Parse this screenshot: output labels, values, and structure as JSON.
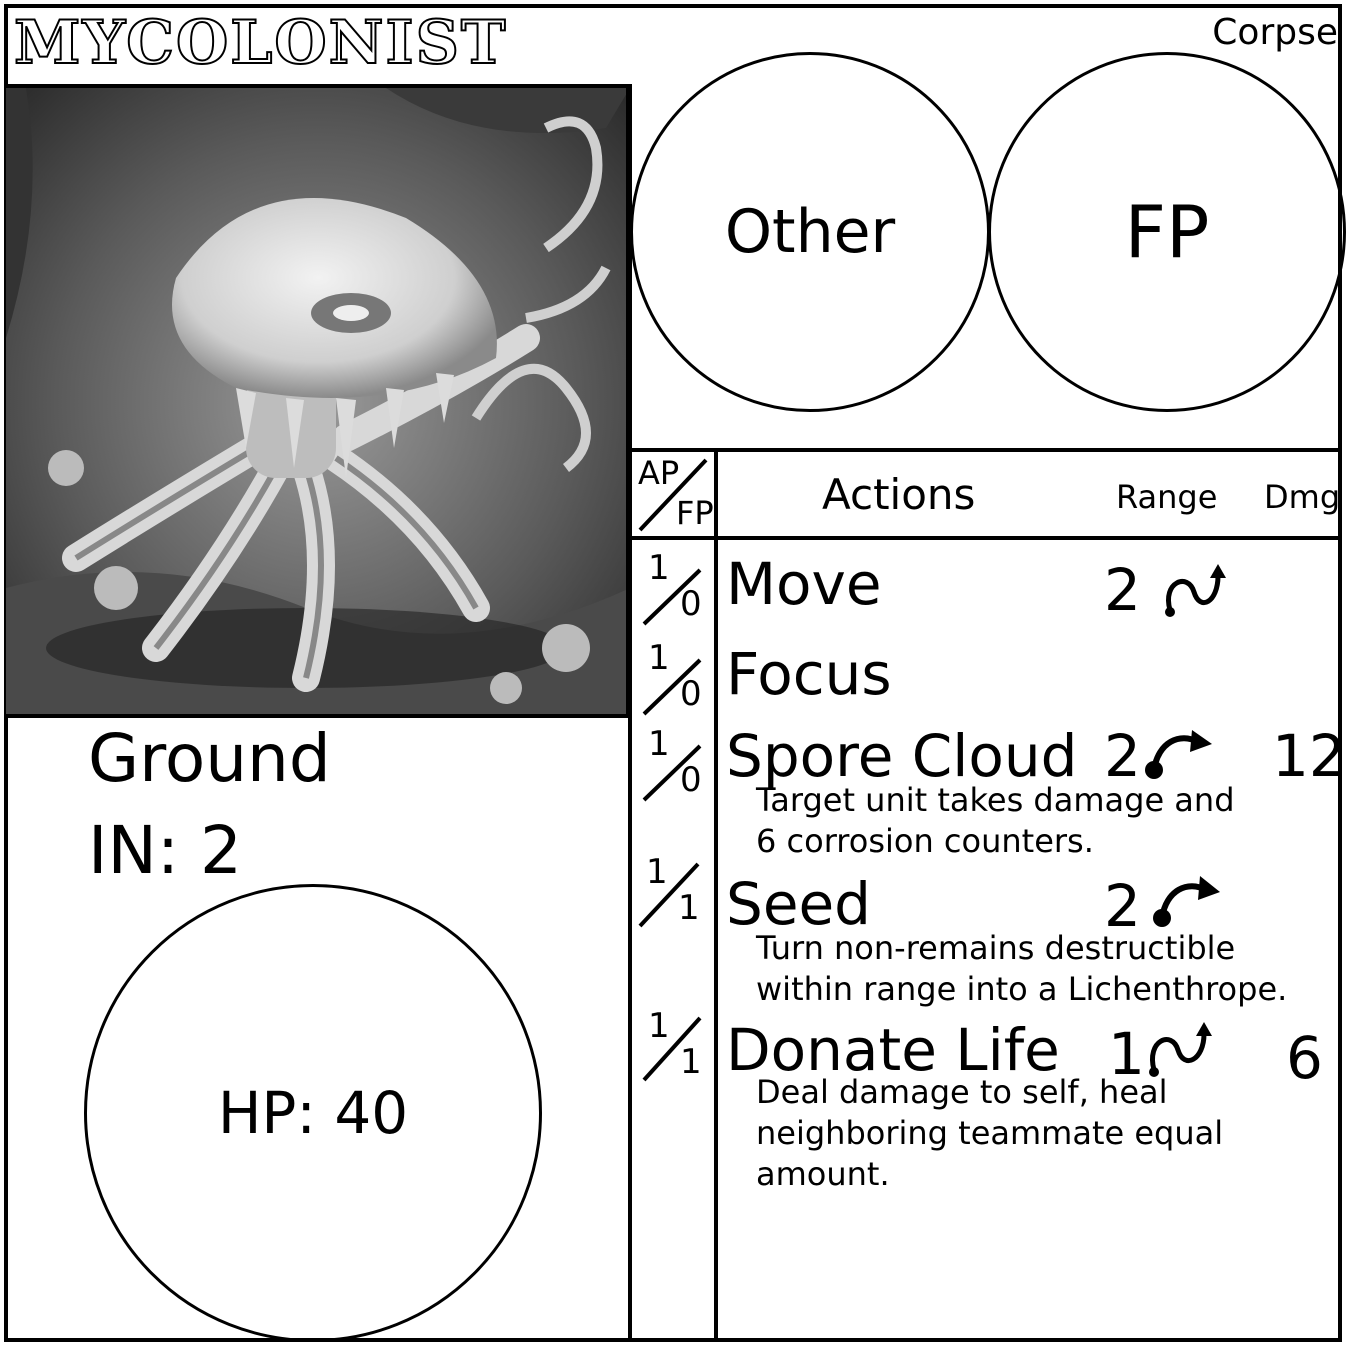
{
  "card": {
    "name": "MYCOLONIST",
    "type_label": "Corpse"
  },
  "badges": {
    "other_label": "Other",
    "fp_label": "FP"
  },
  "stats": {
    "movement_type": "Ground",
    "initiative": "IN: 2",
    "hp": "HP: 40"
  },
  "actions_table": {
    "cost_header_top": "AP",
    "cost_header_bottom": "FP",
    "header_actions": "Actions",
    "header_range": "Range",
    "header_dmg": "Dmg",
    "rows": [
      {
        "ap": "1",
        "fp": "0",
        "name": "Move",
        "range": "2",
        "range_icon": "curve-arrow-icon",
        "dmg": "",
        "desc": []
      },
      {
        "ap": "1",
        "fp": "0",
        "name": "Focus",
        "range": "",
        "range_icon": "",
        "dmg": "",
        "desc": []
      },
      {
        "ap": "1",
        "fp": "0",
        "name": "Spore Cloud",
        "range": "2",
        "range_icon": "arc-arrow-icon",
        "dmg": "12",
        "desc": [
          "Target unit takes damage and",
          "6 corrosion counters."
        ]
      },
      {
        "ap": "1",
        "fp": "1",
        "name": "Seed",
        "range": "2",
        "range_icon": "arc-arrow-icon",
        "dmg": "",
        "desc": [
          "Turn non-remains destructible",
          "within range into a Lichenthrope."
        ]
      },
      {
        "ap": "1",
        "fp": "1",
        "name": "Donate Life",
        "range": "1",
        "range_icon": "curve-arrow-icon",
        "dmg": "6",
        "desc": [
          "Deal damage to self, heal",
          "neighboring teammate equal",
          "amount."
        ]
      }
    ]
  },
  "colors": {
    "ink": "#000000",
    "paper": "#ffffff"
  }
}
